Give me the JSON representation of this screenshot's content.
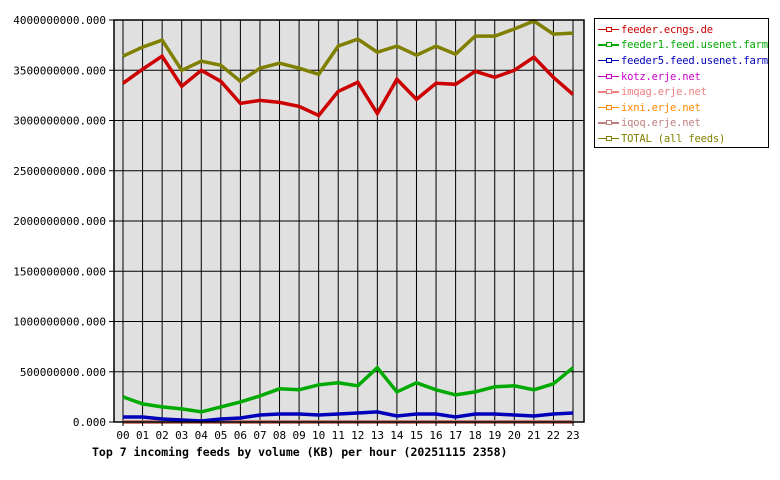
{
  "chart_data": {
    "type": "line",
    "title": "Top 7 incoming feeds by volume (KB) per hour (20251115 2358)",
    "xlabel": "",
    "ylabel": "",
    "ylim": [
      0,
      4000000000
    ],
    "grid": true,
    "legend_position": "right",
    "y_ticks": [
      "0.000",
      "500000000.000",
      "1000000000.000",
      "1500000000.000",
      "2000000000.000",
      "2500000000.000",
      "3000000000.000",
      "3500000000.000",
      "4000000000.000"
    ],
    "x": [
      "00",
      "01",
      "02",
      "03",
      "04",
      "05",
      "06",
      "07",
      "08",
      "09",
      "10",
      "11",
      "12",
      "13",
      "14",
      "15",
      "16",
      "17",
      "18",
      "19",
      "20",
      "21",
      "22",
      "23"
    ],
    "series": [
      {
        "name": "feeder.ecngs.de",
        "color": "#cc0000",
        "values": [
          3370000000,
          3510000000,
          3640000000,
          3340000000,
          3500000000,
          3390000000,
          3170000000,
          3200000000,
          3180000000,
          3140000000,
          3050000000,
          3290000000,
          3380000000,
          3070000000,
          3410000000,
          3210000000,
          3370000000,
          3360000000,
          3490000000,
          3430000000,
          3500000000,
          3630000000,
          3430000000,
          3260000000
        ]
      },
      {
        "name": "feeder1.feed.usenet.farm",
        "color": "#00aa00",
        "values": [
          250000000,
          180000000,
          150000000,
          130000000,
          100000000,
          150000000,
          200000000,
          260000000,
          330000000,
          320000000,
          370000000,
          390000000,
          360000000,
          540000000,
          300000000,
          390000000,
          320000000,
          270000000,
          300000000,
          350000000,
          360000000,
          320000000,
          380000000,
          540000000
        ]
      },
      {
        "name": "feeder5.feed.usenet.farm",
        "color": "#0000bb",
        "values": [
          50000000,
          50000000,
          30000000,
          20000000,
          10000000,
          30000000,
          40000000,
          70000000,
          80000000,
          80000000,
          70000000,
          80000000,
          90000000,
          100000000,
          60000000,
          80000000,
          80000000,
          50000000,
          80000000,
          80000000,
          70000000,
          60000000,
          80000000,
          90000000
        ]
      },
      {
        "name": "kotz.erje.net",
        "color": "#cc00cc",
        "values": [
          0,
          0,
          0,
          0,
          0,
          0,
          0,
          0,
          0,
          0,
          0,
          0,
          0,
          0,
          0,
          0,
          0,
          0,
          0,
          0,
          0,
          0,
          0,
          0
        ]
      },
      {
        "name": "imqag.erje.net",
        "color": "#f08080",
        "values": [
          0,
          0,
          0,
          0,
          0,
          0,
          0,
          0,
          0,
          0,
          0,
          0,
          0,
          0,
          0,
          0,
          0,
          0,
          0,
          0,
          0,
          0,
          0,
          0
        ]
      },
      {
        "name": "ixni.erje.net",
        "color": "#ff8800",
        "values": [
          0,
          0,
          0,
          0,
          0,
          0,
          0,
          0,
          0,
          0,
          0,
          0,
          0,
          0,
          0,
          0,
          0,
          0,
          0,
          0,
          0,
          0,
          0,
          0
        ]
      },
      {
        "name": "iqoq.erje.net",
        "color": "#c08080",
        "values": [
          0,
          0,
          0,
          0,
          0,
          0,
          0,
          0,
          0,
          0,
          0,
          0,
          0,
          0,
          0,
          0,
          0,
          0,
          0,
          0,
          0,
          0,
          0,
          0
        ]
      },
      {
        "name": "TOTAL (all feeds)",
        "color": "#808000",
        "values": [
          3640000000,
          3730000000,
          3800000000,
          3500000000,
          3590000000,
          3550000000,
          3390000000,
          3520000000,
          3570000000,
          3520000000,
          3460000000,
          3740000000,
          3810000000,
          3680000000,
          3740000000,
          3650000000,
          3740000000,
          3660000000,
          3840000000,
          3840000000,
          3910000000,
          3990000000,
          3860000000,
          3870000000
        ]
      }
    ]
  },
  "legend": {
    "items": [
      {
        "label": "feeder.ecngs.de",
        "color": "#cc0000"
      },
      {
        "label": "feeder1.feed.usenet.farm",
        "color": "#00aa00"
      },
      {
        "label": "feeder5.feed.usenet.farm",
        "color": "#0000bb"
      },
      {
        "label": "kotz.erje.net",
        "color": "#cc00cc"
      },
      {
        "label": "imqag.erje.net",
        "color": "#f08080"
      },
      {
        "label": "ixni.erje.net",
        "color": "#ff8800"
      },
      {
        "label": "iqoq.erje.net",
        "color": "#c08080"
      },
      {
        "label": "TOTAL (all feeds)",
        "color": "#808000"
      }
    ]
  },
  "colors": {
    "plot_background": "#e0e0e0",
    "grid": "#000000",
    "frame": "#000000"
  }
}
